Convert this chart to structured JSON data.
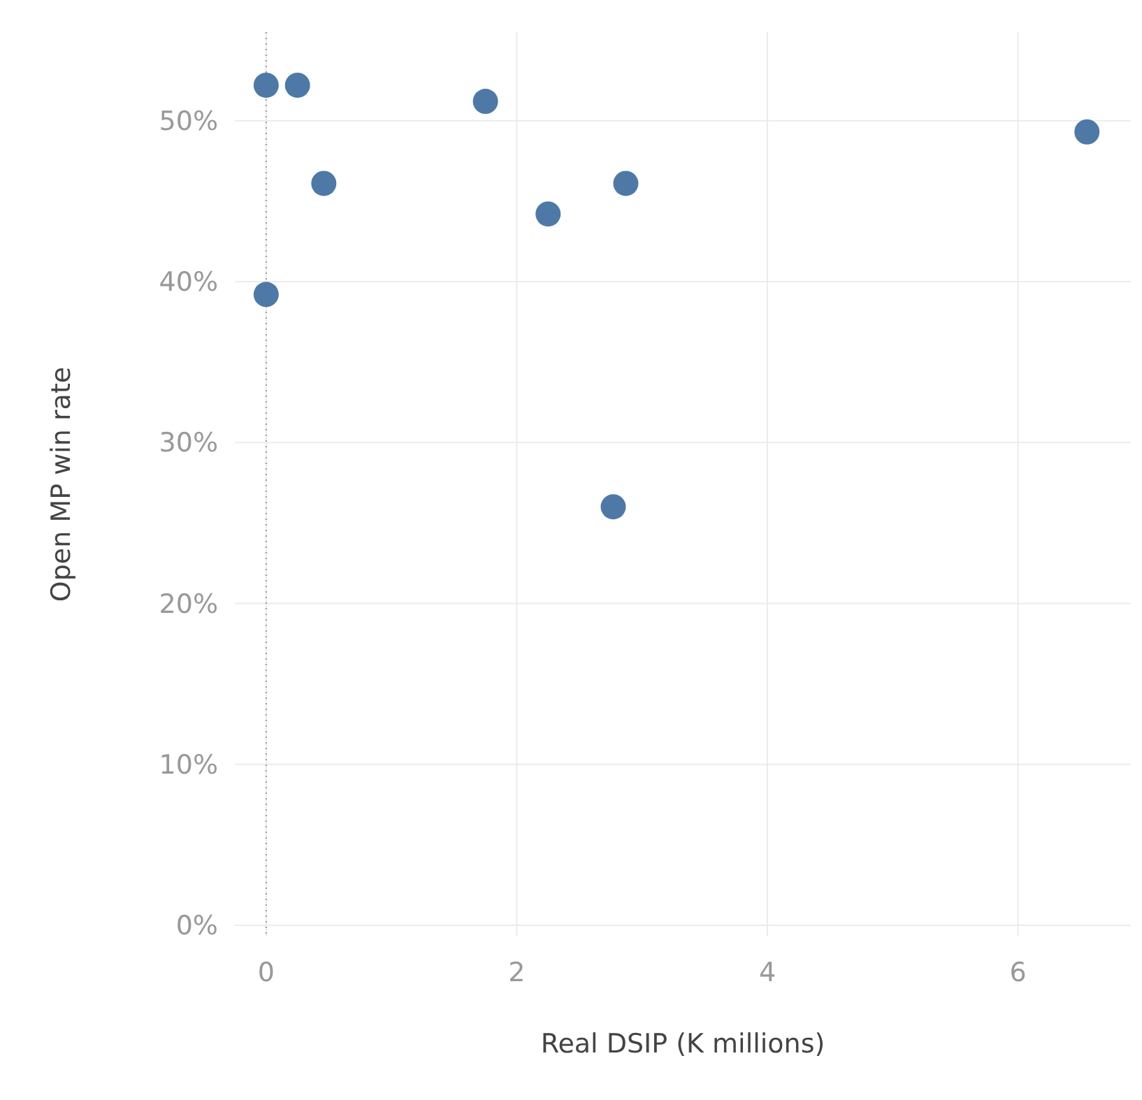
{
  "chart_data": {
    "type": "scatter",
    "xlabel": "Real DSIP (K millions)",
    "ylabel": "Open MP win rate",
    "x": [
      0,
      0.25,
      0.46,
      0,
      1.75,
      2.25,
      2.87,
      2.77,
      6.55
    ],
    "series": [
      {
        "color": "#4e79a7",
        "values": [
          52.2,
          52.2,
          46.1,
          39.2,
          51.2,
          44.2,
          46.1,
          26.0,
          49.3
        ]
      }
    ],
    "xlim": [
      -0.25,
      6.9
    ],
    "ylim": [
      -0.7,
      55.5
    ],
    "xticks": [
      0,
      2,
      4,
      6
    ],
    "yticks": [
      {
        "value": 0,
        "label": "0%"
      },
      {
        "value": 10,
        "label": "10%"
      },
      {
        "value": 20,
        "label": "20%"
      },
      {
        "value": 30,
        "label": "30%"
      },
      {
        "value": 40,
        "label": "40%"
      },
      {
        "value": 50,
        "label": "50%"
      }
    ],
    "ref_lines": [
      {
        "axis": "x",
        "value": 0,
        "color": "#999999",
        "line_style": "dotted"
      }
    ],
    "grid": true,
    "marker": "circle"
  }
}
